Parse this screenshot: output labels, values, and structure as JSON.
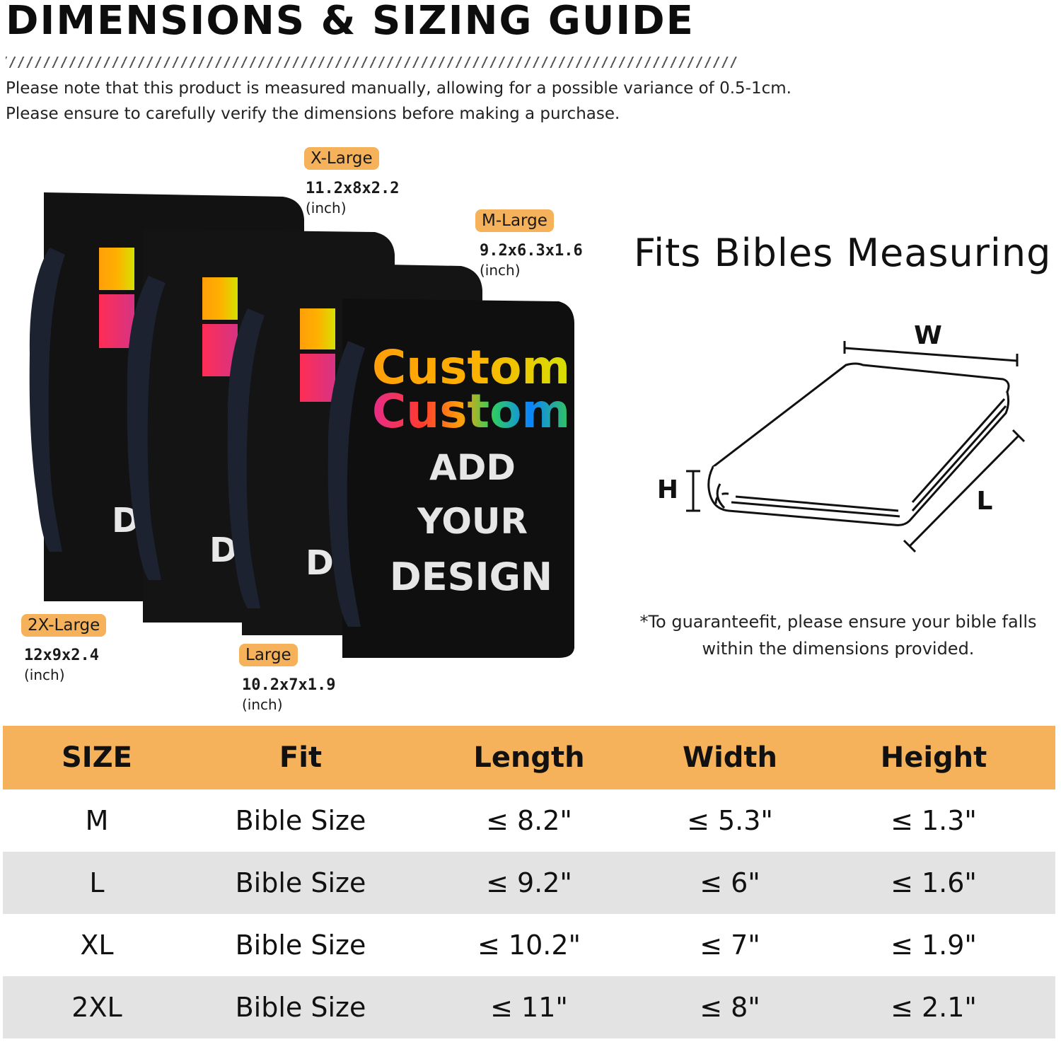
{
  "header": {
    "title": "DIMENSIONS & SIZING GUIDE",
    "note_line1": "Please note that this product is measured manually, allowing for a possible variance of 0.5-1cm.",
    "note_line2": "Please ensure to carefully verify the dimensions before making a purchase."
  },
  "products": {
    "cover_text": {
      "custom1": "Custom",
      "custom2": "Custom",
      "add": "ADD",
      "your": "YOUR",
      "design": "DESIGN",
      "partial_d": "D"
    },
    "sizes": [
      {
        "key": "xl",
        "label": "X-Large",
        "dims": "11.2x8x2.2",
        "unit": "(inch)"
      },
      {
        "key": "ml",
        "label": "M-Large",
        "dims": "9.2x6.3x1.6",
        "unit": "(inch)"
      },
      {
        "key": "xxl",
        "label": "2X-Large",
        "dims": "12x9x2.4",
        "unit": "(inch)"
      },
      {
        "key": "l",
        "label": "Large",
        "dims": "10.2x7x1.9",
        "unit": "(inch)"
      }
    ]
  },
  "fits": {
    "heading": "Fits Bibles Measuring",
    "w_label": "W",
    "h_label": "H",
    "l_label": "L",
    "guarantee_line1": "*To guaranteefit, please ensure your bible falls",
    "guarantee_line2": "within the dimensions provided."
  },
  "table": {
    "headers": [
      "SIZE",
      "Fit",
      "Length",
      "Width",
      "Height"
    ],
    "rows": [
      [
        "M",
        "Bible Size",
        "≤ 8.2\"",
        "≤ 5.3\"",
        "≤ 1.3\""
      ],
      [
        "L",
        "Bible Size",
        "≤ 9.2\"",
        "≤ 6\"",
        "≤ 1.6\""
      ],
      [
        "XL",
        "Bible Size",
        "≤ 10.2\"",
        "≤ 7\"",
        "≤ 1.9\""
      ],
      [
        "2XL",
        "Bible Size",
        "≤ 11\"",
        "≤ 8\"",
        "≤ 2.1\""
      ]
    ]
  },
  "colors": {
    "accent_orange": "#f5b25a",
    "cover_black": "#111111",
    "row_shade": "#e3e3e3"
  }
}
